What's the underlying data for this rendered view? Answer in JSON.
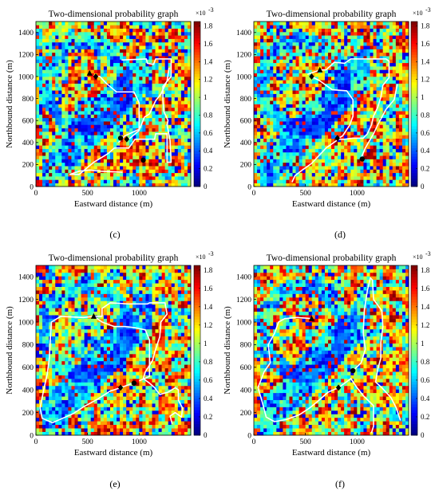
{
  "figure": {
    "panel_labels": [
      "(c)",
      "(d)",
      "(e)",
      "(f)"
    ]
  },
  "chart_data": [
    {
      "type": "heatmap",
      "panel": "(c)",
      "title": "Two-dimensional probability graph",
      "xlabel": "Eastward distance (m)",
      "ylabel": "Northbound distance (m)",
      "xlim": [
        0,
        1500
      ],
      "ylim": [
        0,
        1500
      ],
      "xticks": [
        "0",
        "500",
        "1000"
      ],
      "yticks": [
        "0",
        "200",
        "400",
        "600",
        "800",
        "1000",
        "1200",
        "1400"
      ],
      "colorbar": {
        "range": [
          0,
          1.85
        ],
        "ticks": [
          "0",
          "0.2",
          "0.4",
          "0.6",
          "0.8",
          "1",
          "1.2",
          "1.4",
          "1.6",
          "1.8"
        ],
        "exponent": "×10",
        "exponent_power": "-3",
        "colormap": "jet"
      },
      "markers": [
        {
          "shape": "triangle",
          "x": 520,
          "y": 1030
        },
        {
          "shape": "diamond",
          "x": 580,
          "y": 1000
        },
        {
          "shape": "circle",
          "x": 820,
          "y": 440
        },
        {
          "shape": "circle",
          "x": 1040,
          "y": 240
        },
        {
          "shape": "diamond",
          "x": 880,
          "y": 430
        }
      ],
      "paths": [
        [
          [
            830,
            1150
          ],
          [
            1070,
            1160
          ],
          [
            1080,
            1120
          ],
          [
            1140,
            1110
          ],
          [
            1160,
            1160
          ],
          [
            1310,
            1160
          ],
          [
            1310,
            1000
          ],
          [
            1230,
            910
          ],
          [
            1230,
            790
          ],
          [
            1240,
            680
          ],
          [
            1280,
            600
          ],
          [
            1270,
            560
          ],
          [
            1300,
            420
          ],
          [
            1310,
            220
          ],
          [
            1270,
            220
          ],
          [
            1270,
            480
          ],
          [
            1160,
            480
          ],
          [
            1150,
            430
          ],
          [
            960,
            430
          ],
          [
            900,
            350
          ],
          [
            760,
            350
          ],
          [
            700,
            300
          ],
          [
            560,
            220
          ],
          [
            420,
            110
          ],
          [
            330,
            110
          ],
          [
            420,
            140
          ],
          [
            520,
            150
          ],
          [
            620,
            140
          ],
          [
            840,
            130
          ]
        ],
        [
          [
            560,
            1010
          ],
          [
            620,
            1000
          ],
          [
            680,
            940
          ],
          [
            780,
            860
          ],
          [
            950,
            860
          ],
          [
            1000,
            760
          ],
          [
            1000,
            520
          ],
          [
            860,
            460
          ],
          [
            800,
            400
          ]
        ],
        [
          [
            900,
            430
          ],
          [
            1000,
            510
          ],
          [
            1050,
            630
          ],
          [
            1100,
            660
          ],
          [
            1160,
            780
          ],
          [
            1210,
            840
          ],
          [
            1270,
            960
          ],
          [
            1290,
            1080
          ]
        ]
      ]
    },
    {
      "type": "heatmap",
      "panel": "(d)",
      "title": "Two-dimensional probability graph",
      "xlabel": "Eastward distance (m)",
      "ylabel": "Northbound distance (m)",
      "xlim": [
        0,
        1500
      ],
      "ylim": [
        0,
        1500
      ],
      "xticks": [
        "0",
        "500",
        "1000"
      ],
      "yticks": [
        "0",
        "200",
        "400",
        "600",
        "800",
        "1000",
        "1200",
        "1400"
      ],
      "colorbar": {
        "range": [
          0,
          1.85
        ],
        "ticks": [
          "0",
          "0.2",
          "0.4",
          "0.6",
          "0.8",
          "1",
          "1.2",
          "1.4",
          "1.6",
          "1.8"
        ],
        "exponent": "×10",
        "exponent_power": "-3",
        "colormap": "jet"
      },
      "markers": [
        {
          "shape": "diamond",
          "x": 560,
          "y": 1000
        },
        {
          "shape": "triangle",
          "x": 640,
          "y": 1060
        },
        {
          "shape": "diamond",
          "x": 810,
          "y": 440
        },
        {
          "shape": "circle",
          "x": 1050,
          "y": 250
        }
      ],
      "paths": [
        [
          [
            520,
            1020
          ],
          [
            640,
            1060
          ],
          [
            700,
            1060
          ],
          [
            780,
            1130
          ],
          [
            880,
            1120
          ],
          [
            940,
            1160
          ],
          [
            1060,
            1160
          ],
          [
            1180,
            1160
          ],
          [
            1280,
            1160
          ],
          [
            1310,
            1140
          ],
          [
            1310,
            990
          ],
          [
            1250,
            920
          ],
          [
            1230,
            810
          ],
          [
            1200,
            720
          ],
          [
            1160,
            640
          ],
          [
            1140,
            560
          ],
          [
            1100,
            480
          ],
          [
            1060,
            440
          ],
          [
            960,
            440
          ],
          [
            880,
            430
          ],
          [
            820,
            430
          ],
          [
            760,
            390
          ],
          [
            700,
            350
          ],
          [
            640,
            290
          ],
          [
            560,
            210
          ],
          [
            470,
            150
          ],
          [
            400,
            100
          ],
          [
            370,
            40
          ]
        ],
        [
          [
            560,
            1000
          ],
          [
            640,
            960
          ],
          [
            760,
            880
          ],
          [
            900,
            870
          ],
          [
            960,
            790
          ],
          [
            960,
            640
          ],
          [
            930,
            560
          ],
          [
            860,
            460
          ],
          [
            820,
            440
          ]
        ],
        [
          [
            1040,
            260
          ],
          [
            1080,
            350
          ],
          [
            1160,
            480
          ],
          [
            1200,
            560
          ],
          [
            1280,
            700
          ],
          [
            1360,
            790
          ],
          [
            1390,
            930
          ]
        ]
      ]
    },
    {
      "type": "heatmap",
      "panel": "(e)",
      "title": "Two-dimensional probability graph",
      "xlabel": "Eastward distance (m)",
      "ylabel": "Northbound distance (m)",
      "xlim": [
        0,
        1500
      ],
      "ylim": [
        0,
        1500
      ],
      "xticks": [
        "0",
        "500",
        "1000"
      ],
      "yticks": [
        "0",
        "200",
        "400",
        "600",
        "800",
        "1000",
        "1200",
        "1400"
      ],
      "colorbar": {
        "range": [
          0,
          1.85
        ],
        "ticks": [
          "0",
          "0.2",
          "0.4",
          "0.6",
          "0.8",
          "1",
          "1.2",
          "1.4",
          "1.6",
          "1.8"
        ],
        "exponent": "×10",
        "exponent_power": "-3",
        "colormap": "jet"
      },
      "markers": [
        {
          "shape": "triangle",
          "x": 560,
          "y": 1050
        },
        {
          "shape": "diamond",
          "x": 820,
          "y": 420
        },
        {
          "shape": "circle",
          "x": 950,
          "y": 460
        }
      ],
      "paths": [
        [
          [
            560,
            1050
          ],
          [
            640,
            1050
          ],
          [
            640,
            1120
          ],
          [
            720,
            1170
          ],
          [
            900,
            1160
          ],
          [
            1080,
            1160
          ],
          [
            1100,
            1170
          ],
          [
            1250,
            1170
          ],
          [
            1270,
            1070
          ],
          [
            1210,
            1000
          ],
          [
            1200,
            870
          ],
          [
            1160,
            760
          ],
          [
            1130,
            660
          ],
          [
            1060,
            560
          ],
          [
            1040,
            500
          ],
          [
            1100,
            460
          ],
          [
            1150,
            420
          ],
          [
            1200,
            360
          ],
          [
            1280,
            380
          ],
          [
            1350,
            420
          ],
          [
            1380,
            400
          ],
          [
            1380,
            310
          ],
          [
            1420,
            240
          ],
          [
            1410,
            160
          ],
          [
            1350,
            200
          ],
          [
            1300,
            170
          ],
          [
            1320,
            100
          ]
        ],
        [
          [
            560,
            1050
          ],
          [
            460,
            1040
          ],
          [
            240,
            1050
          ],
          [
            150,
            1000
          ],
          [
            140,
            850
          ],
          [
            130,
            680
          ],
          [
            110,
            540
          ],
          [
            80,
            420
          ],
          [
            40,
            240
          ],
          [
            60,
            150
          ],
          [
            160,
            110
          ],
          [
            260,
            150
          ],
          [
            360,
            190
          ],
          [
            460,
            250
          ],
          [
            600,
            320
          ],
          [
            720,
            390
          ],
          [
            820,
            420
          ],
          [
            940,
            460
          ]
        ],
        [
          [
            560,
            1050
          ],
          [
            640,
            1000
          ],
          [
            760,
            960
          ],
          [
            860,
            960
          ],
          [
            960,
            950
          ],
          [
            1060,
            930
          ],
          [
            1100,
            840
          ],
          [
            1100,
            650
          ],
          [
            1100,
            520
          ],
          [
            1000,
            480
          ]
        ]
      ]
    },
    {
      "type": "heatmap",
      "panel": "(f)",
      "title": "Two-dimensional probability graph",
      "xlabel": "Eastward distance (m)",
      "ylabel": "Northbound distance (m)",
      "xlim": [
        0,
        1500
      ],
      "ylim": [
        0,
        1500
      ],
      "xticks": [
        "0",
        "500",
        "1000"
      ],
      "yticks": [
        "0",
        "200",
        "400",
        "600",
        "800",
        "1000",
        "1200",
        "1400"
      ],
      "colorbar": {
        "range": [
          0,
          1.85
        ],
        "ticks": [
          "0",
          "0.2",
          "0.4",
          "0.6",
          "0.8",
          "1",
          "1.2",
          "1.4",
          "1.6",
          "1.8"
        ],
        "exponent": "×10",
        "exponent_power": "-3",
        "colormap": "jet"
      },
      "markers": [
        {
          "shape": "triangle",
          "x": 560,
          "y": 1030
        },
        {
          "shape": "diamond",
          "x": 820,
          "y": 420
        },
        {
          "shape": "circle",
          "x": 960,
          "y": 570
        }
      ],
      "paths": [
        [
          [
            960,
            570
          ],
          [
            1040,
            640
          ],
          [
            1080,
            760
          ],
          [
            1060,
            900
          ],
          [
            1070,
            1100
          ],
          [
            1100,
            1280
          ],
          [
            1130,
            1390
          ],
          [
            1150,
            1370
          ],
          [
            1160,
            1200
          ],
          [
            1240,
            1100
          ],
          [
            1250,
            960
          ],
          [
            1230,
            820
          ],
          [
            1230,
            680
          ],
          [
            1200,
            580
          ],
          [
            1180,
            470
          ],
          [
            1240,
            420
          ],
          [
            1330,
            330
          ],
          [
            1380,
            240
          ],
          [
            1420,
            130
          ]
        ],
        [
          [
            820,
            420
          ],
          [
            720,
            380
          ],
          [
            620,
            300
          ],
          [
            540,
            240
          ],
          [
            440,
            180
          ],
          [
            320,
            140
          ],
          [
            200,
            120
          ],
          [
            120,
            160
          ],
          [
            80,
            300
          ],
          [
            40,
            420
          ],
          [
            100,
            560
          ],
          [
            160,
            640
          ],
          [
            140,
            800
          ],
          [
            200,
            900
          ],
          [
            240,
            1000
          ],
          [
            300,
            1030
          ],
          [
            420,
            1040
          ],
          [
            560,
            1030
          ]
        ],
        [
          [
            820,
            420
          ],
          [
            940,
            500
          ],
          [
            1000,
            420
          ],
          [
            1060,
            350
          ],
          [
            1160,
            260
          ],
          [
            1160,
            160
          ],
          [
            1160,
            80
          ],
          [
            1140,
            20
          ]
        ]
      ]
    }
  ]
}
